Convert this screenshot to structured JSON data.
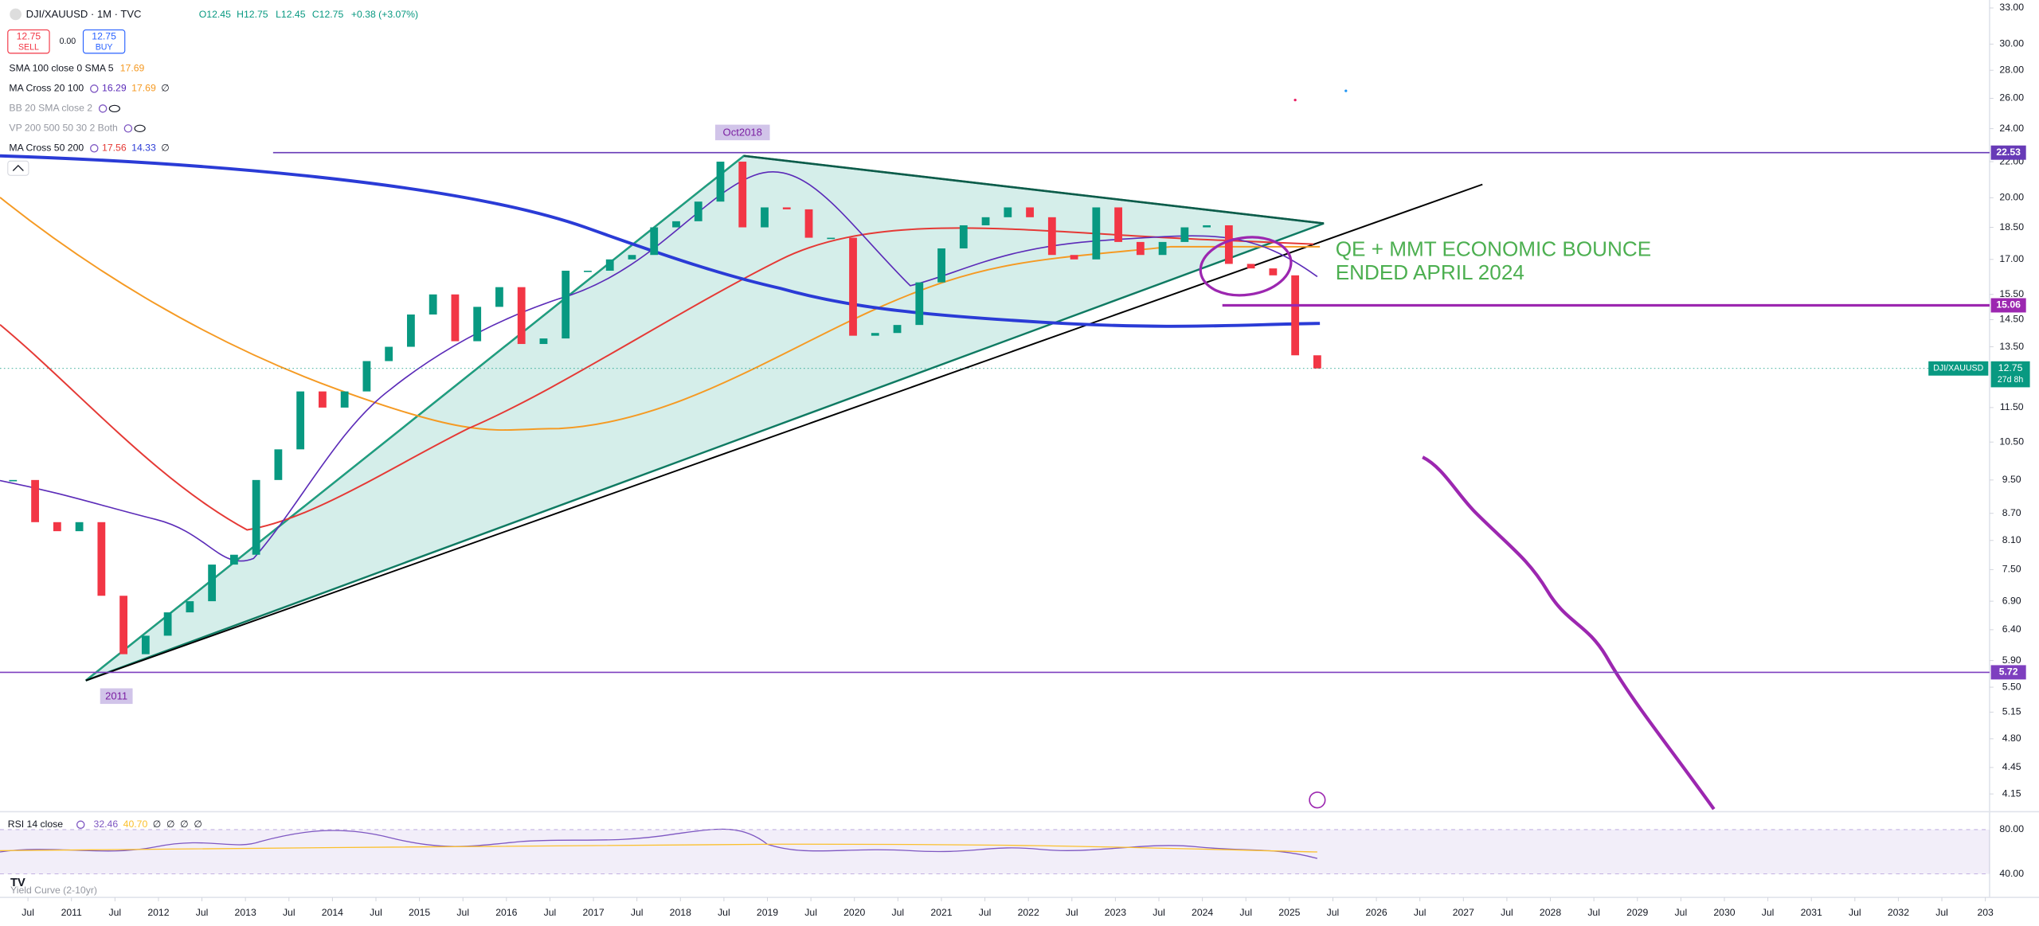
{
  "header": {
    "symbol": "DJI/XAUUSD · 1M · TVC",
    "open": "O12.45",
    "high": "H12.75",
    "low": "L12.45",
    "close": "C12.75",
    "change": "+0.38 (+3.07%)"
  },
  "trade": {
    "sell_price": "12.75",
    "sell": "SELL",
    "spread": "0.00",
    "buy_price": "12.75",
    "buy": "BUY"
  },
  "indicators": [
    {
      "name": "SMA 100 close 0 SMA 5",
      "values": [
        "17.69"
      ]
    },
    {
      "name": "MA Cross 20 100",
      "values": [
        "16.29",
        "17.69",
        "∅"
      ]
    },
    {
      "name": "BB 20 SMA close 2",
      "values": []
    },
    {
      "name": "VP 200 500 50 30 2 Both",
      "values": []
    },
    {
      "name": "MA Cross 50 200",
      "values": [
        "17.56",
        "14.33",
        "∅"
      ]
    }
  ],
  "annotations": {
    "peak": "Oct2018",
    "low": "2011",
    "note_line1": "QE + MMT ECONOMIC BOUNCE",
    "note_line2": "ENDED APRIL 2024"
  },
  "rsi": {
    "title": "RSI 14 close",
    "values": [
      "32.46",
      "40.70",
      "∅",
      "∅",
      "∅",
      "∅"
    ],
    "ylim": [
      20,
      95
    ],
    "yticks": [
      {
        "value": 80,
        "label": "80.00"
      },
      {
        "value": 40,
        "label": "40.00"
      }
    ]
  },
  "yield_curve": "Yield Curve (2-10yr)",
  "chart_data": {
    "type": "candlestick",
    "closes": [
      9.5,
      8.5,
      8.3,
      8.5,
      7.0,
      6.0,
      6.3,
      6.7,
      6.9,
      7.6,
      7.8,
      9.5,
      10.3,
      12.0,
      11.5,
      12.0,
      13.0,
      13.5,
      14.7,
      15.5,
      13.7,
      15.0,
      15.8,
      13.6,
      13.8,
      16.5,
      16.5,
      17.0,
      17.2,
      18.5,
      18.8,
      19.8,
      22.0,
      18.5,
      19.5,
      19.4,
      18.0,
      18.0,
      13.9,
      14.0,
      14.3,
      16.0,
      17.5,
      18.6,
      19.0,
      19.5,
      19.0,
      17.2,
      17.0,
      19.5,
      17.8,
      17.2,
      17.8,
      18.5,
      18.6,
      16.8,
      16.6,
      16.3,
      13.2,
      12.75
    ],
    "up_color": "#089981",
    "down_color": "#f23645",
    "log_scale": true,
    "ylim": [
      3.96,
      33.7
    ],
    "yticks": [
      {
        "value": 33,
        "label": "33.00"
      },
      {
        "value": 30,
        "label": "30.00"
      },
      {
        "value": 28,
        "label": "28.00"
      },
      {
        "value": 26,
        "label": "26.00"
      },
      {
        "value": 24,
        "label": "24.00"
      },
      {
        "value": 22,
        "label": "22.00"
      },
      {
        "value": 20,
        "label": "20.00"
      },
      {
        "value": 18.5,
        "label": "18.50"
      },
      {
        "value": 17,
        "label": "17.00"
      },
      {
        "value": 15.5,
        "label": "15.50"
      },
      {
        "value": 14.5,
        "label": "14.50"
      },
      {
        "value": 13.5,
        "label": "13.50"
      },
      {
        "value": 11.5,
        "label": "11.50"
      },
      {
        "value": 10.5,
        "label": "10.50"
      },
      {
        "value": 9.5,
        "label": "9.50"
      },
      {
        "value": 8.7,
        "label": "8.70"
      },
      {
        "value": 8.1,
        "label": "8.10"
      },
      {
        "value": 7.5,
        "label": "7.50"
      },
      {
        "value": 6.9,
        "label": "6.90"
      },
      {
        "value": 6.4,
        "label": "6.40"
      },
      {
        "value": 5.9,
        "label": "5.90"
      },
      {
        "value": 5.5,
        "label": "5.50"
      },
      {
        "value": 5.15,
        "label": "5.15"
      },
      {
        "value": 4.8,
        "label": "4.80"
      },
      {
        "value": 4.45,
        "label": "4.45"
      },
      {
        "value": 4.15,
        "label": "4.15"
      }
    ],
    "levels": [
      {
        "value": 22.53,
        "label": "22.53",
        "color": "#673ab7"
      },
      {
        "value": 15.06,
        "label": "15.06",
        "color": "#9c27b0"
      },
      {
        "value": 5.72,
        "label": "5.72",
        "color": "#7e3fbf"
      }
    ],
    "last_price": {
      "value": 12.75,
      "label": "12.75",
      "symbol": "DJI/XAUUSD",
      "countdown": "27d 8h",
      "color": "#089981"
    },
    "xticks": [
      "Jul",
      "2011",
      "Jul",
      "2012",
      "Jul",
      "2013",
      "Jul",
      "2014",
      "Jul",
      "2015",
      "Jul",
      "2016",
      "Jul",
      "2017",
      "Jul",
      "2018",
      "Jul",
      "2019",
      "Jul",
      "2020",
      "Jul",
      "2021",
      "Jul",
      "2022",
      "Jul",
      "2023",
      "Jul",
      "2024",
      "Jul",
      "2025",
      "Jul",
      "2026",
      "Jul",
      "2027",
      "Jul",
      "2028",
      "Jul",
      "2029",
      "Jul",
      "2030",
      "Jul",
      "2031",
      "Jul",
      "2032",
      "Jul",
      "203"
    ]
  }
}
